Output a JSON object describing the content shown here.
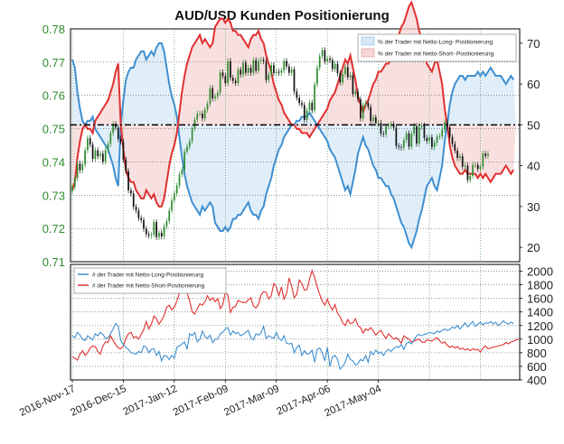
{
  "chart_data": [
    {
      "type": "line",
      "title": "AUD/USD Kunden Positionierung",
      "left_axis": {
        "ticks": [
          0.71,
          0.72,
          0.73,
          0.74,
          0.75,
          0.76,
          0.77,
          0.78
        ],
        "ylim": [
          0.71,
          0.78
        ],
        "color": "#2e8b2e"
      },
      "right_axis": {
        "ticks": [
          20,
          30,
          40,
          50,
          60,
          70
        ],
        "ylim": [
          16.5,
          73.5
        ]
      },
      "reference_line": {
        "y": 50
      },
      "grid": true,
      "legend": {
        "position": "top-right"
      },
      "x": [
        0,
        1,
        2,
        3,
        4,
        5,
        6,
        7,
        8,
        9,
        10,
        11,
        12,
        13,
        14,
        15,
        16,
        17,
        18,
        19,
        20,
        21,
        22,
        23,
        24,
        25,
        26,
        27,
        28,
        29,
        30,
        31,
        32,
        33,
        34,
        35,
        36,
        37,
        38,
        39,
        40,
        41,
        42,
        43,
        44,
        45,
        46,
        47,
        48,
        49,
        50,
        51,
        52,
        53,
        54,
        55,
        56,
        57,
        58,
        59,
        60,
        61,
        62,
        63,
        64,
        65,
        66,
        67,
        68,
        69,
        70,
        71,
        72,
        73,
        74,
        75,
        76,
        77,
        78,
        79,
        80,
        81,
        82,
        83,
        84,
        85,
        86,
        87,
        88,
        89,
        90,
        91,
        92,
        93,
        94,
        95,
        96,
        97,
        98,
        99,
        100,
        101,
        102,
        103,
        104,
        105,
        106,
        107,
        108,
        109,
        110,
        111,
        112,
        113,
        114,
        115,
        116,
        117,
        118,
        119,
        120,
        121,
        122,
        123,
        124,
        125,
        126,
        127,
        128,
        129,
        130,
        131,
        132,
        133,
        134,
        135,
        136,
        137,
        138,
        139,
        140,
        141,
        142,
        143,
        144,
        145,
        146,
        147,
        148,
        149,
        150,
        151,
        152,
        153,
        154,
        155,
        156,
        157,
        158,
        159,
        160,
        161,
        162,
        163,
        164,
        165,
        166,
        167,
        168,
        169,
        170,
        171,
        172,
        173,
        174
      ],
      "price_close": [
        0.7325,
        0.7352,
        0.7395,
        0.7375,
        0.7393,
        0.7435,
        0.7471,
        0.7452,
        0.7409,
        0.7435,
        0.7417,
        0.7425,
        0.7401,
        0.7435,
        0.7454,
        0.7487,
        0.7514,
        0.7503,
        0.7469,
        0.7461,
        0.7407,
        0.7372,
        0.7315,
        0.7305,
        0.7265,
        0.7254,
        0.7231,
        0.7225,
        0.7199,
        0.7183,
        0.7179,
        0.7181,
        0.7219,
        0.7174,
        0.7187,
        0.7176,
        0.7206,
        0.7222,
        0.7254,
        0.7284,
        0.7305,
        0.7329,
        0.7362,
        0.7376,
        0.7431,
        0.7446,
        0.7463,
        0.7501,
        0.7527,
        0.7545,
        0.7545,
        0.7531,
        0.7557,
        0.7575,
        0.7622,
        0.7591,
        0.7597,
        0.7608,
        0.7669,
        0.7658,
        0.7637,
        0.7703,
        0.7653,
        0.7644,
        0.7637,
        0.7677,
        0.7663,
        0.7698,
        0.7668,
        0.7683,
        0.7668,
        0.7706,
        0.7674,
        0.7704,
        0.7707,
        0.7703,
        0.7646,
        0.7663,
        0.7691,
        0.7667,
        0.7671,
        0.7668,
        0.7675,
        0.7703,
        0.7687,
        0.7668,
        0.7678,
        0.7612,
        0.7593,
        0.7577,
        0.7571,
        0.7526,
        0.7555,
        0.7578,
        0.7555,
        0.7633,
        0.7683,
        0.7718,
        0.7736,
        0.7702,
        0.7711,
        0.7706,
        0.7679,
        0.7695,
        0.7667,
        0.7639,
        0.7664,
        0.7685,
        0.7655,
        0.7661,
        0.7604,
        0.7611,
        0.7588,
        0.7531,
        0.7571,
        0.7577,
        0.7565,
        0.7523,
        0.7534,
        0.7517,
        0.7517,
        0.7485,
        0.7483,
        0.7507,
        0.7509,
        0.7514,
        0.7503,
        0.7448,
        0.7445,
        0.7443,
        0.7466,
        0.7486,
        0.7446,
        0.7485,
        0.7508,
        0.7455,
        0.7505,
        0.7509,
        0.7472,
        0.7463,
        0.7474,
        0.7445,
        0.7458,
        0.7476,
        0.7477,
        0.7497,
        0.7519,
        0.7504,
        0.7475,
        0.7454,
        0.7434,
        0.7412,
        0.7417,
        0.7386,
        0.7389,
        0.7346,
        0.7358,
        0.7391,
        0.7391,
        0.7379,
        0.7386,
        0.7425,
        0.7418,
        0.7424
      ],
      "long_pct": [
        66,
        64,
        58,
        54,
        51,
        50,
        51,
        51,
        52,
        49,
        48,
        47,
        46,
        45,
        44,
        42,
        40,
        37,
        35,
        50,
        56,
        61,
        63,
        64,
        64,
        66,
        67,
        68,
        68,
        66,
        67,
        68,
        67,
        69,
        70,
        70,
        68,
        64,
        60,
        57,
        55,
        52,
        47,
        42,
        38,
        35,
        33,
        31,
        30,
        29,
        28,
        30,
        29,
        30,
        31,
        30,
        26,
        25,
        24,
        24,
        25,
        24,
        25,
        27,
        27,
        28,
        28,
        29,
        30,
        31,
        29,
        28,
        28,
        27,
        29,
        30,
        33,
        35,
        37,
        40,
        42,
        44,
        45,
        47,
        48,
        49,
        50,
        50,
        51,
        51,
        52,
        52,
        52,
        53,
        52,
        51,
        50,
        49,
        48,
        47,
        46,
        44,
        43,
        42,
        40,
        38,
        36,
        34,
        35,
        33,
        36,
        39,
        43,
        45,
        47,
        45,
        44,
        42,
        40,
        39,
        37,
        37,
        36,
        35,
        35,
        33,
        32,
        30,
        28,
        26,
        25,
        23,
        21,
        20,
        22,
        24,
        27,
        29,
        32,
        35,
        36,
        37,
        35,
        34,
        37,
        40,
        46,
        50,
        55,
        58,
        60,
        61,
        62,
        62,
        61,
        62,
        62,
        62,
        62,
        63,
        62,
        63,
        62,
        63,
        64,
        63,
        62,
        62,
        62,
        61,
        60,
        61,
        62,
        61
      ],
      "short_pct": [
        34,
        36,
        42,
        46,
        49,
        50,
        49,
        49,
        48,
        51,
        52,
        53,
        54,
        55,
        56,
        58,
        60,
        63,
        65,
        50,
        44,
        39,
        37,
        36,
        36,
        34,
        33,
        32,
        32,
        34,
        33,
        32,
        33,
        31,
        30,
        30,
        32,
        36,
        40,
        43,
        45,
        48,
        53,
        58,
        62,
        65,
        67,
        69,
        70,
        71,
        72,
        70,
        71,
        70,
        69,
        70,
        74,
        75,
        76,
        76,
        75,
        76,
        75,
        73,
        73,
        72,
        72,
        71,
        70,
        69,
        71,
        72,
        72,
        73,
        71,
        70,
        67,
        65,
        63,
        60,
        58,
        56,
        55,
        53,
        52,
        51,
        50,
        50,
        49,
        49,
        48,
        48,
        48,
        47,
        48,
        49,
        50,
        51,
        52,
        53,
        54,
        56,
        57,
        58,
        60,
        62,
        64,
        66,
        65,
        67,
        64,
        61,
        57,
        55,
        53,
        55,
        56,
        58,
        60,
        61,
        63,
        63,
        64,
        65,
        65,
        67,
        68,
        70,
        72,
        74,
        75,
        77,
        79,
        80,
        78,
        76,
        73,
        71,
        68,
        65,
        64,
        63,
        65,
        66,
        63,
        60,
        54,
        50,
        45,
        42,
        40,
        39,
        38,
        38,
        39,
        38,
        38,
        38,
        38,
        37,
        38,
        37,
        38,
        37,
        36,
        37,
        38,
        38,
        38,
        39,
        40,
        39,
        38,
        39
      ],
      "series": [
        {
          "name": "% der Trader mit Netto-Long- Positionierung",
          "color": "#3f8fd0"
        },
        {
          "name": "% der Trader mit Netto-Short- Positionierung",
          "color": "#e03030"
        }
      ]
    },
    {
      "type": "line",
      "categories": [
        "2016-Nov-17",
        "2016-Dec-15",
        "2017-Jan-12",
        "2017-Feb-09",
        "2017-Mar-09",
        "2017-Apr-06",
        "2017-May-04"
      ],
      "right_axis": {
        "ticks": [
          400,
          600,
          800,
          1000,
          1200,
          1400,
          1600,
          1800,
          2000
        ],
        "ylim": [
          400,
          2100
        ]
      },
      "grid": true,
      "legend": {
        "position": "top-left"
      },
      "long_count": [
        1050,
        1020,
        1100,
        1060,
        1000,
        980,
        1050,
        1020,
        990,
        1080,
        1050,
        1100,
        1070,
        1010,
        1020,
        1080,
        1150,
        1230,
        1190,
        980,
        920,
        880,
        850,
        800,
        790,
        780,
        820,
        800,
        900,
        880,
        800,
        850,
        860,
        760,
        820,
        680,
        760,
        750,
        700,
        760,
        720,
        880,
        900,
        930,
        960,
        850,
        1080,
        1050,
        1100,
        960,
        1000,
        1120,
        1040,
        1010,
        1060,
        950,
        1000,
        1000,
        1080,
        1100,
        1150,
        1170,
        1060,
        1120,
        1080,
        1100,
        1050,
        1070,
        1100,
        1130,
        1020,
        990,
        1080,
        1060,
        1090,
        1190,
        1010,
        1050,
        1030,
        1010,
        1100,
        1010,
        980,
        1050,
        940,
        930,
        940,
        800,
        880,
        910,
        760,
        830,
        780,
        790,
        840,
        660,
        850,
        870,
        800,
        680,
        880,
        600,
        740,
        760,
        700,
        560,
        600,
        660,
        780,
        700,
        680,
        620,
        640,
        700,
        680,
        760,
        660,
        820,
        770,
        840,
        790,
        810,
        760,
        820,
        850,
        820,
        860,
        890,
        880,
        920,
        850,
        940,
        960,
        930,
        990,
        1050,
        1070,
        1050,
        1070,
        1080,
        1100,
        1090,
        1080,
        1120,
        1100,
        1130,
        1150,
        1130,
        1140,
        1180,
        1160,
        1200,
        1150,
        1190,
        1240,
        1180,
        1220,
        1260,
        1190,
        1220,
        1250,
        1210,
        1240,
        1230,
        1260,
        1220,
        1250,
        1200,
        1230,
        1270,
        1240,
        1220,
        1250,
        1230
      ],
      "short_count": [
        740,
        720,
        690,
        780,
        830,
        760,
        800,
        870,
        900,
        890,
        820,
        780,
        900,
        960,
        950,
        1050,
        980,
        920,
        870,
        860,
        900,
        1010,
        1080,
        1100,
        1020,
        1040,
        1000,
        1070,
        1140,
        1260,
        1150,
        1220,
        1340,
        1300,
        1220,
        1280,
        1350,
        1470,
        1500,
        1430,
        1470,
        1560,
        1680,
        1710,
        1720,
        1680,
        1560,
        1400,
        1370,
        1450,
        1520,
        1500,
        1550,
        1640,
        1570,
        1610,
        1550,
        1600,
        1450,
        1510,
        1690,
        1650,
        1390,
        1470,
        1480,
        1570,
        1550,
        1540,
        1540,
        1580,
        1610,
        1490,
        1460,
        1510,
        1650,
        1700,
        1690,
        1590,
        1640,
        1820,
        1770,
        1640,
        1770,
        1590,
        1670,
        1900,
        1780,
        1610,
        1660,
        1870,
        1820,
        1720,
        1730,
        1880,
        2010,
        1910,
        1770,
        1660,
        1560,
        1500,
        1590,
        1490,
        1430,
        1510,
        1380,
        1330,
        1240,
        1200,
        1290,
        1230,
        1240,
        1300,
        1200,
        1170,
        1090,
        1150,
        1130,
        1170,
        1120,
        1060,
        1100,
        1130,
        1060,
        1010,
        1080,
        1040,
        1000,
        1020,
        990,
        940,
        1050,
        1020,
        1000,
        960,
        970,
        990,
        1000,
        960,
        950,
        990,
        980,
        970,
        1000,
        1020,
        980,
        940,
        960,
        910,
        880,
        900,
        870,
        890,
        850,
        870,
        840,
        860,
        830,
        860,
        840,
        850,
        810,
        870,
        900,
        860,
        870,
        880,
        890,
        900,
        910,
        920,
        950,
        930,
        960,
        970,
        990,
        1000
      ]
    }
  ],
  "x_tick_labels": [
    "2016-Nov-17",
    "2016-Dec-15",
    "2017-Jan-12",
    "2017-Feb-09",
    "2017-Mar-09",
    "2017-Apr-06",
    "2017-May-04"
  ],
  "lower_legend": [
    {
      "name": "# der Trader mit Netto-Long-Positionierung",
      "color": "#3f8fd0"
    },
    {
      "name": "# der Trader mit Netto-Short-Positionierung",
      "color": "#e03030"
    }
  ]
}
